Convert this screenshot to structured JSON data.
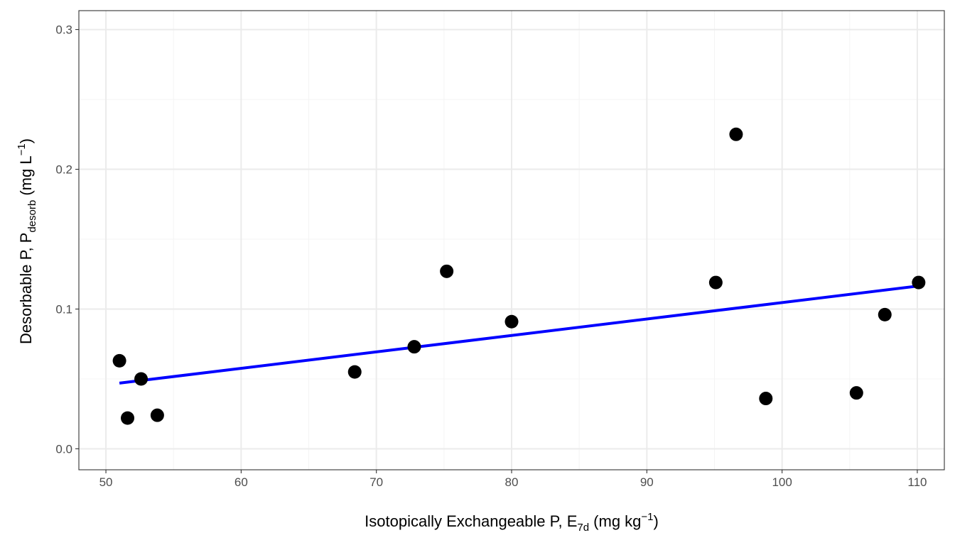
{
  "chart_data": {
    "type": "scatter",
    "title": "",
    "xlabel": {
      "main": "Isotopically Exchangeable P, E",
      "sub": "7d",
      "unit_open": " (mg kg",
      "sup": "−1",
      "unit_close": ")"
    },
    "ylabel": {
      "main": "Desorbable P, P",
      "sub": "desorb",
      "unit_open": " (mg L",
      "sup": "−1",
      "unit_close": ")"
    },
    "xlim": [
      48,
      112
    ],
    "ylim": [
      -0.015,
      0.3135
    ],
    "x_ticks": [
      50,
      60,
      70,
      80,
      90,
      100,
      110
    ],
    "x_tick_labels": [
      "50",
      "60",
      "70",
      "80",
      "90",
      "100",
      "110"
    ],
    "y_ticks": [
      0.0,
      0.1,
      0.2,
      0.3
    ],
    "y_tick_labels": [
      "0.0",
      "0.1",
      "0.2",
      "0.3"
    ],
    "grid": true,
    "legend": "none",
    "points": [
      {
        "x": 51.0,
        "y": 0.063
      },
      {
        "x": 51.6,
        "y": 0.022
      },
      {
        "x": 52.6,
        "y": 0.05
      },
      {
        "x": 53.8,
        "y": 0.024
      },
      {
        "x": 68.4,
        "y": 0.055
      },
      {
        "x": 72.8,
        "y": 0.073
      },
      {
        "x": 75.2,
        "y": 0.127
      },
      {
        "x": 80.0,
        "y": 0.091
      },
      {
        "x": 95.1,
        "y": 0.119
      },
      {
        "x": 96.6,
        "y": 0.225
      },
      {
        "x": 98.8,
        "y": 0.036
      },
      {
        "x": 105.5,
        "y": 0.04
      },
      {
        "x": 107.6,
        "y": 0.096
      },
      {
        "x": 110.1,
        "y": 0.119
      }
    ],
    "fit_line": {
      "x": [
        51.0,
        110.1
      ],
      "y": [
        0.047,
        0.1165
      ]
    },
    "colors": {
      "points": "#000000",
      "fit_line": "#0000ff",
      "grid_major": "#ebebeb",
      "grid_minor": "#f4f4f4",
      "panel_border": "#333333"
    }
  }
}
